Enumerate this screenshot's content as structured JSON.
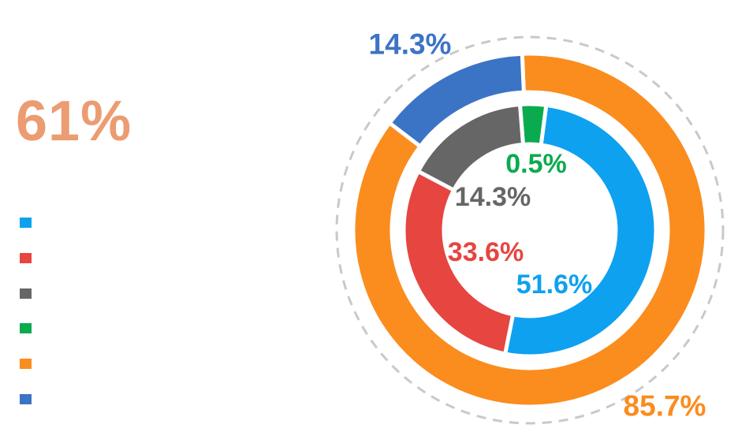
{
  "big_percent": {
    "text": "61%",
    "color": "#EC9C72"
  },
  "legend": {
    "items": [
      {
        "name": "light-blue",
        "color": "#0EA1EF"
      },
      {
        "name": "red",
        "color": "#E64540"
      },
      {
        "name": "gray",
        "color": "#666666"
      },
      {
        "name": "green",
        "color": "#0AAB4F"
      },
      {
        "name": "orange",
        "color": "#FB8C1E"
      },
      {
        "name": "dark-blue",
        "color": "#3C74C5"
      }
    ]
  },
  "chart_data": {
    "type": "pie",
    "variant": "concentric-donut",
    "title": "",
    "legend_position": "left",
    "headline_value": "61%",
    "guide_circle": {
      "style": "dashed",
      "color": "#C9C9C9"
    },
    "rings": [
      {
        "name": "outer",
        "rotation_deg": -2.5,
        "segments": [
          {
            "label": "85.7%",
            "value": 85.7,
            "color": "#FB8C1E",
            "display_deg": 309.9
          },
          {
            "label": "14.3%",
            "value": 14.3,
            "color": "#3C74C5",
            "display_deg": 50.1
          }
        ]
      },
      {
        "name": "inner",
        "rotation_deg": -4.5,
        "segments": [
          {
            "label": "0.5%",
            "value": 0.5,
            "color": "#0AAB4F",
            "display_deg": 12.0
          },
          {
            "label": "51.6%",
            "value": 51.6,
            "color": "#0EA1EF",
            "display_deg": 183.8
          },
          {
            "label": "33.6%",
            "value": 33.6,
            "color": "#E64540",
            "display_deg": 106.5
          },
          {
            "label": "14.3%",
            "value": 14.3,
            "color": "#666666",
            "display_deg": 57.7
          }
        ]
      }
    ]
  }
}
